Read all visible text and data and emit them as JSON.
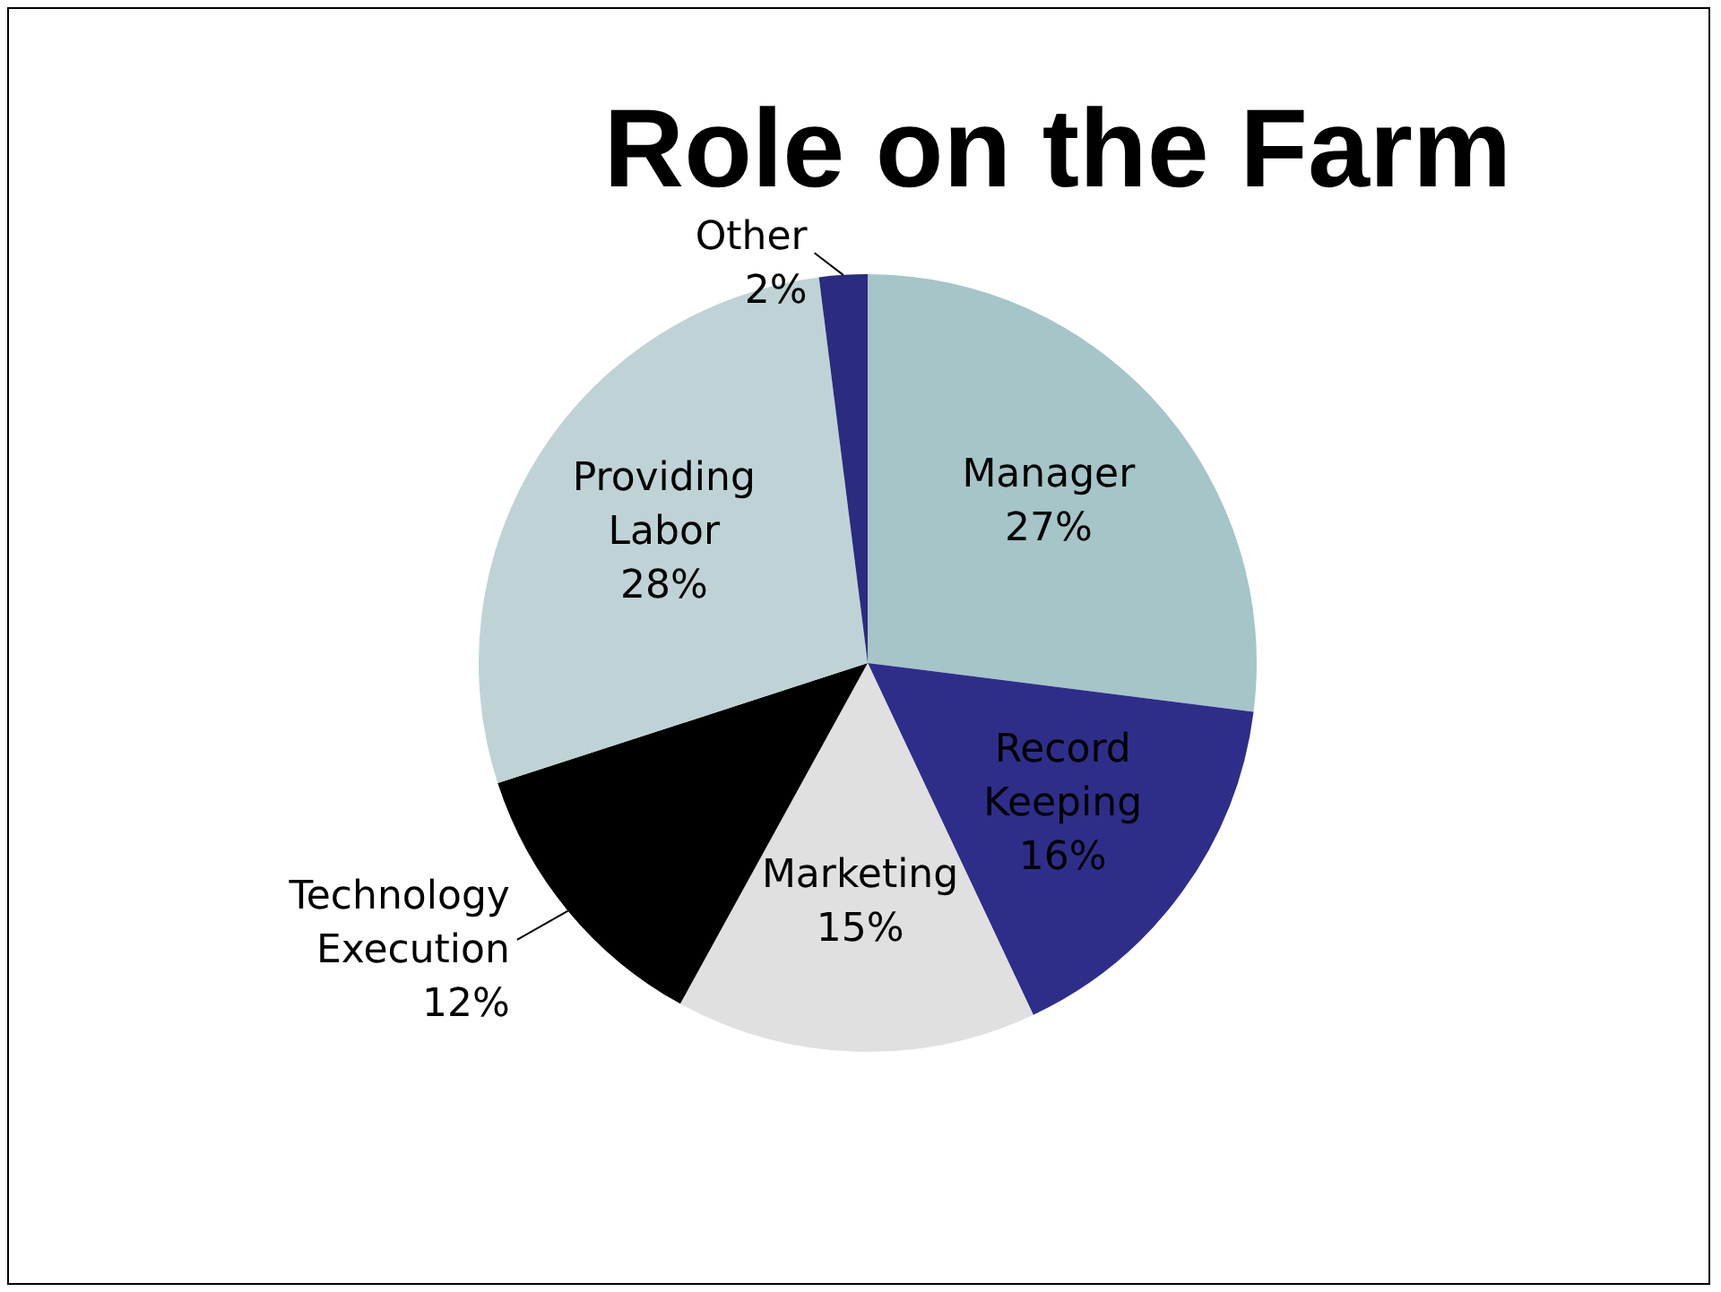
{
  "chart_data": {
    "type": "pie",
    "title": "Role on the Farm",
    "categories": [
      "Manager",
      "Record Keeping",
      "Marketing",
      "Technology Execution",
      "Providing Labor",
      "Other"
    ],
    "values": [
      27,
      16,
      15,
      12,
      28,
      2
    ],
    "colors": [
      "#a5c5c8",
      "#2e2e8a",
      "#e0e0e0",
      "#000000",
      "#bfd3d6",
      "#2b2b7f"
    ],
    "value_labels": [
      "27%",
      "16%",
      "15%",
      "12%",
      "28%",
      "2%"
    ],
    "legend": false
  }
}
